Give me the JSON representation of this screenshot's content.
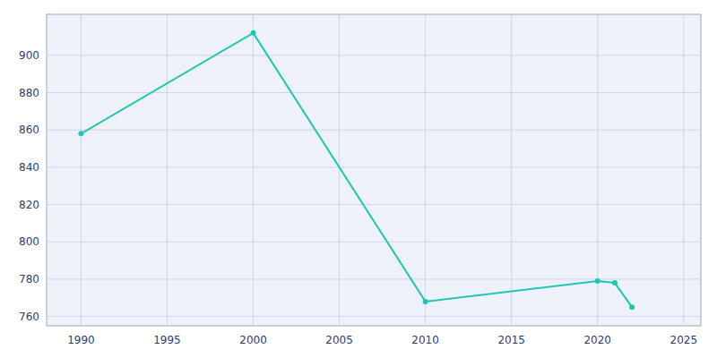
{
  "chart_data": {
    "type": "line",
    "x": [
      1990,
      2000,
      2010,
      2020,
      2021,
      2022
    ],
    "values": [
      858,
      912,
      768,
      779,
      778,
      765
    ],
    "color": "#20c5b5",
    "marker": "circle",
    "xlim": [
      1988,
      2026
    ],
    "ylim": [
      755,
      922
    ],
    "xticks": [
      1990,
      1995,
      2000,
      2005,
      2010,
      2015,
      2020,
      2025
    ],
    "yticks": [
      760,
      780,
      800,
      820,
      840,
      860,
      880,
      900
    ],
    "grid": true
  }
}
